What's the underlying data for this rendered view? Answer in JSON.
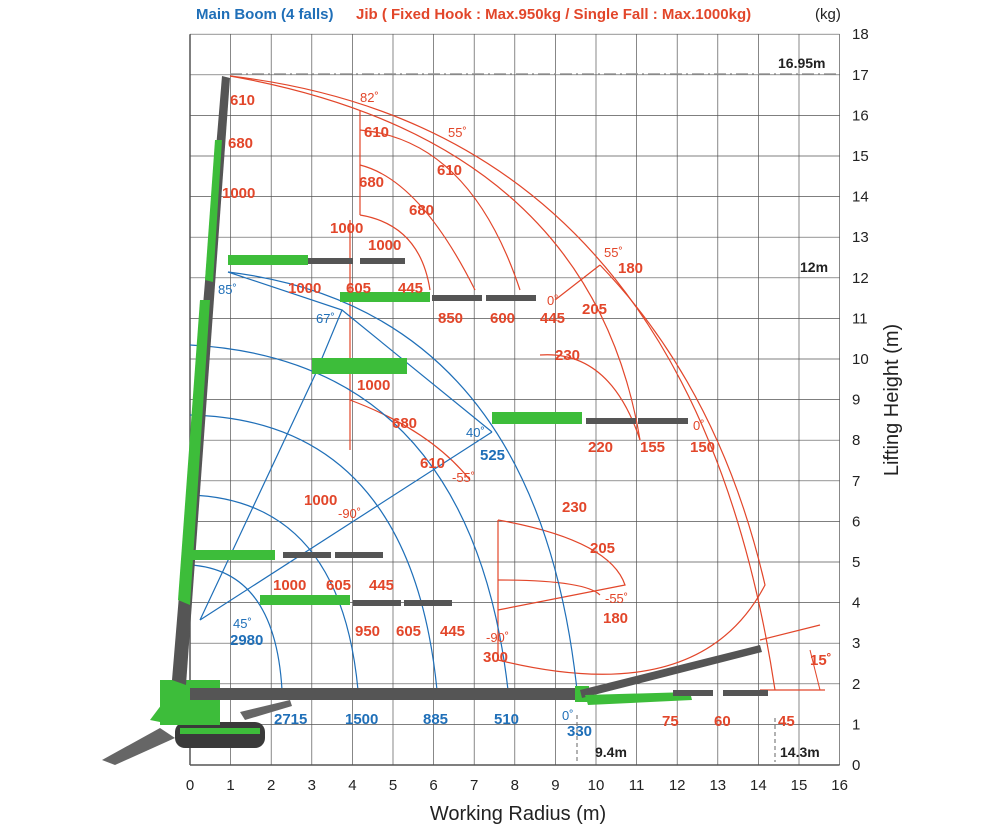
{
  "header": {
    "main_boom_legend": "Main Boom (4 falls)",
    "jib_legend": "Jib ( Fixed Hook : Max.950kg / Single Fall : Max.1000kg)",
    "unit": "(kg)"
  },
  "axes": {
    "x_label": "Working Radius (m)",
    "y_label": "Lifting Height (m)",
    "x_ticks": [
      "0",
      "1",
      "2",
      "3",
      "4",
      "5",
      "6",
      "7",
      "8",
      "9",
      "10",
      "11",
      "12",
      "13",
      "14",
      "15",
      "16"
    ],
    "y_ticks": [
      "0",
      "1",
      "2",
      "3",
      "4",
      "5",
      "6",
      "7",
      "8",
      "9",
      "10",
      "11",
      "12",
      "13",
      "14",
      "15",
      "16",
      "17",
      "18"
    ]
  },
  "dimensions": {
    "max_height": "16.95m",
    "main_height": "12m",
    "main_radius": "9.4m",
    "max_radius": "14.3m"
  },
  "main_boom_angles": [
    "85˚",
    "67˚",
    "45˚",
    "40˚",
    "0˚"
  ],
  "main_boom_loads": {
    "bottom_row": [
      "2715",
      "1500",
      "885",
      "510",
      "330"
    ],
    "angle_45": "2980",
    "angle_40": "525"
  },
  "jib_angles": {
    "top_82": "82˚",
    "top_55": "55˚",
    "mid_55": "55˚",
    "zero_a": "0˚",
    "zero_b": "0˚",
    "neg55_a": "-55˚",
    "neg90_a": "-90˚",
    "neg55_b": "-55˚",
    "neg90_b": "-90˚",
    "tilt": "15˚"
  },
  "jib_loads": {
    "boom_tip": [
      "610",
      "680",
      "1000"
    ],
    "arc_upper": [
      "610",
      "610",
      "680",
      "680",
      "1000",
      "1000"
    ],
    "row_85": [
      "1000",
      "605",
      "445"
    ],
    "row_67": [
      "850",
      "600",
      "445"
    ],
    "mid_upper": [
      "205",
      "230",
      "180"
    ],
    "arc_mid": [
      "1000",
      "680",
      "610",
      "1000"
    ],
    "row_40": [
      "220",
      "155",
      "150"
    ],
    "arc_lower": [
      "230",
      "205",
      "180"
    ],
    "row_low1": [
      "1000",
      "605",
      "445"
    ],
    "row_low2": [
      "950",
      "605",
      "445"
    ],
    "low_arc": "300",
    "row_0": [
      "75",
      "60",
      "45"
    ]
  },
  "colors": {
    "main_boom": "#1f6fb8",
    "jib": "#e2462a",
    "crane_green": "#3dbd3a",
    "boom_dark": "#555555",
    "grid": "#333333"
  },
  "icons": {
    "crane": "mini-crawler-crane-icon",
    "hook": "hook-icon"
  }
}
